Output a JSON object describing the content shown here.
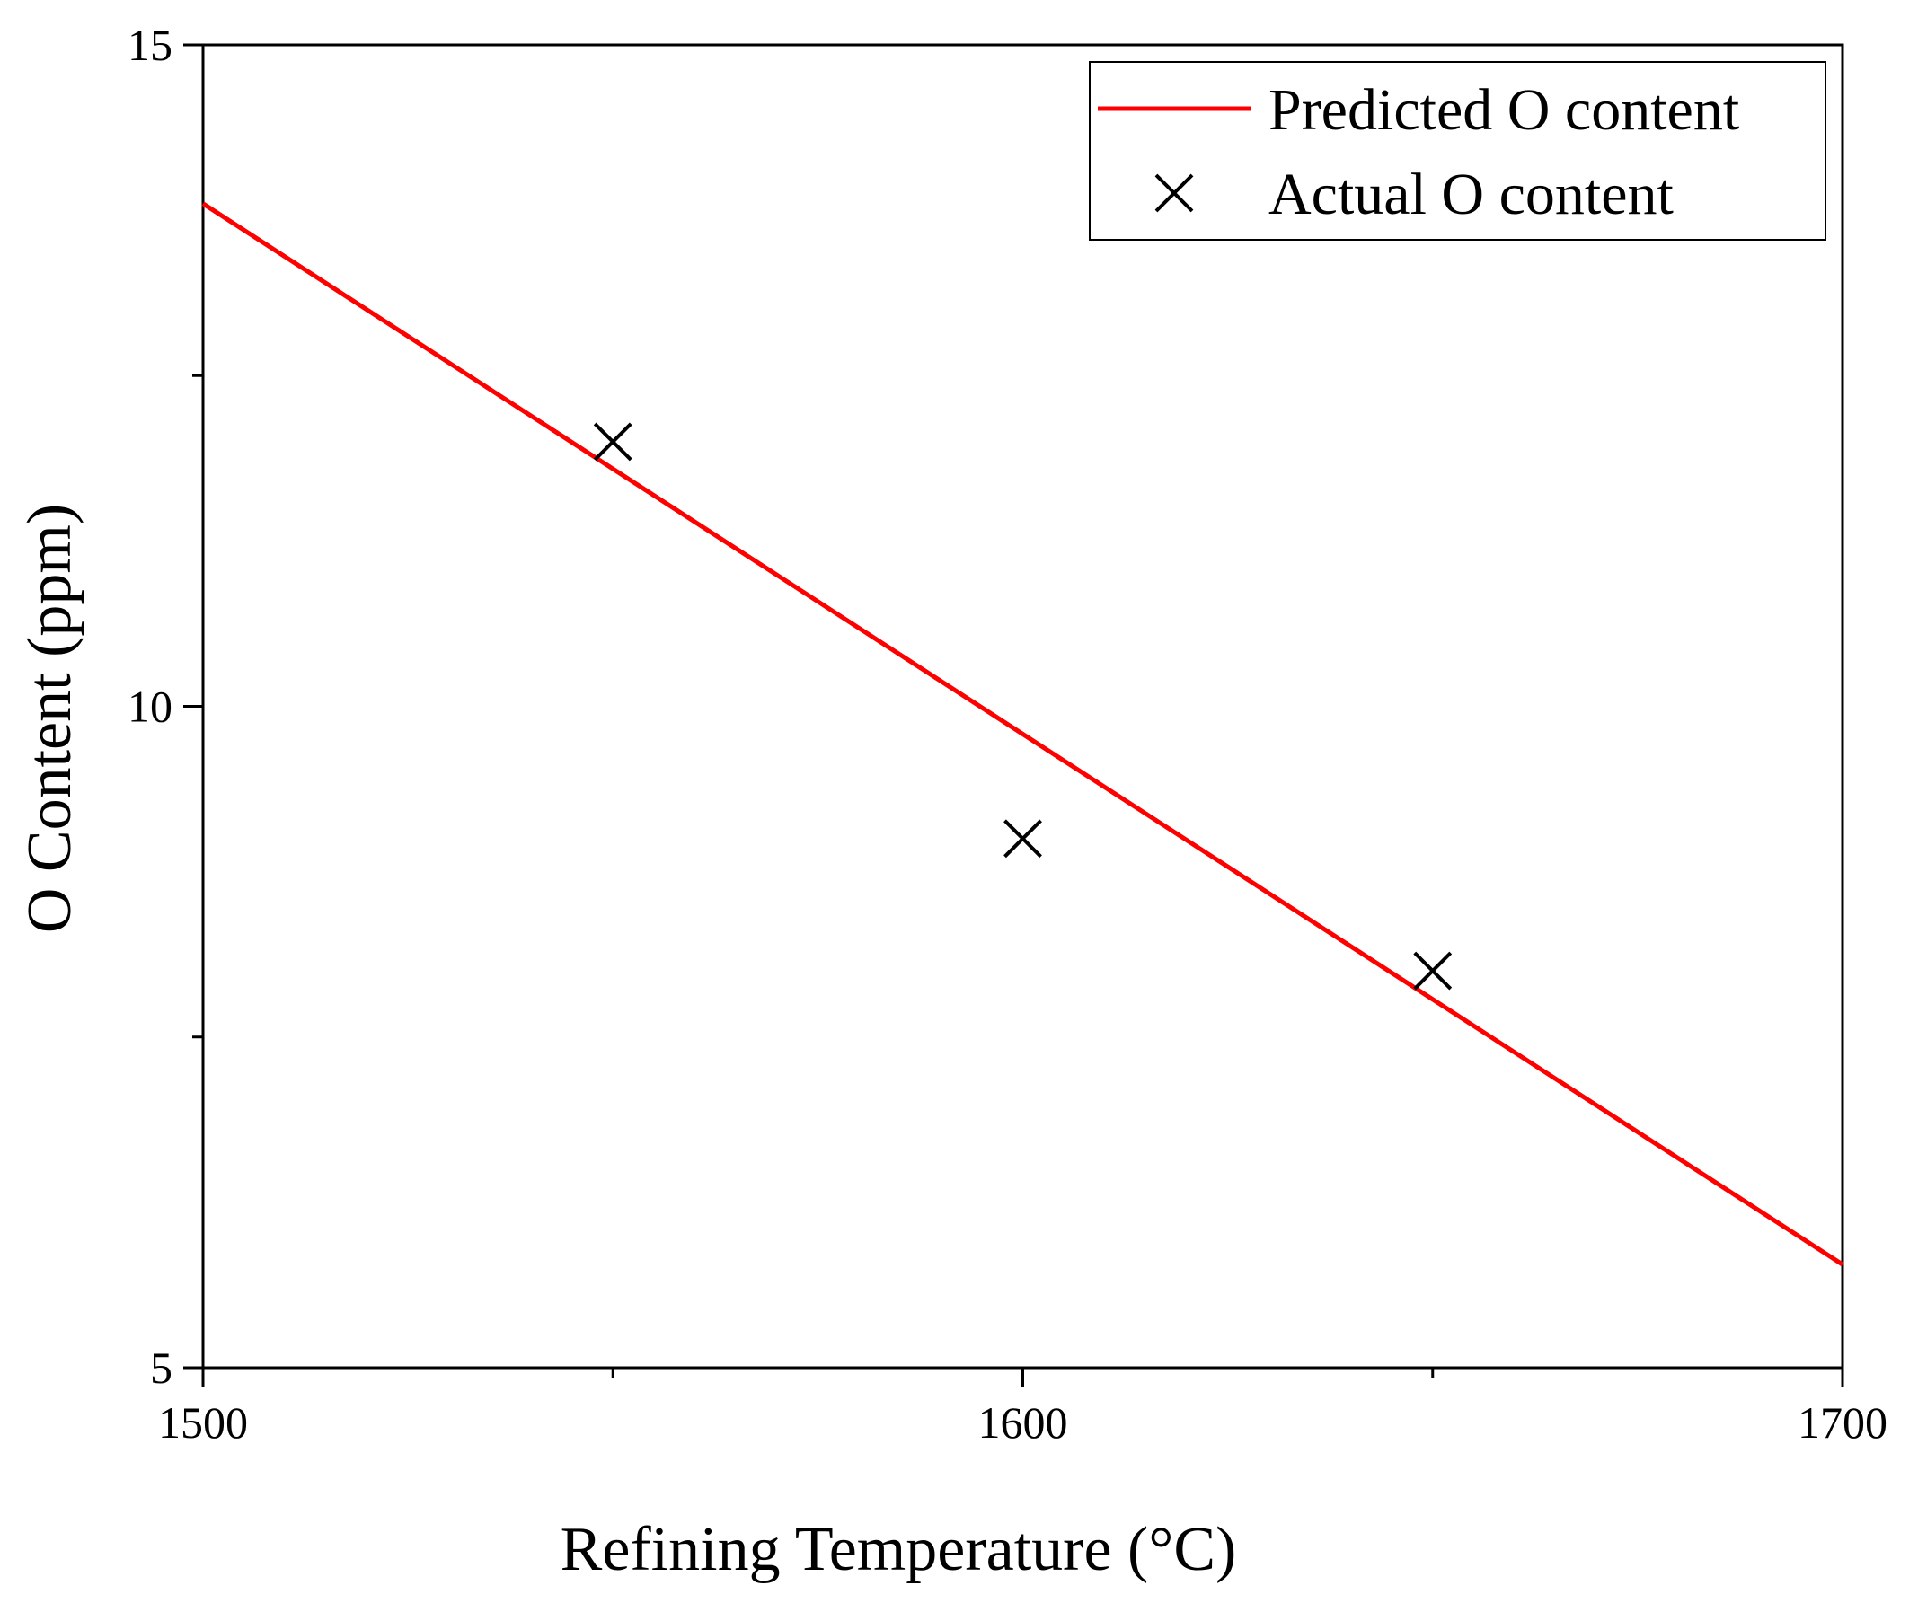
{
  "chart_data": {
    "type": "line",
    "title": "",
    "xlabel": "Refining Temperature (°C)",
    "ylabel": "O Content (ppm)",
    "xlim": [
      1500,
      1700
    ],
    "ylim": [
      5,
      15
    ],
    "x_major_ticks": [
      1500,
      1600,
      1700
    ],
    "x_minor_ticks": [
      1550,
      1650
    ],
    "y_major_ticks": [
      5,
      10,
      15
    ],
    "y_minor_ticks": [
      7.5,
      12.5
    ],
    "x_tick_labels": [
      "1500",
      "1600",
      "1700"
    ],
    "y_tick_labels": [
      "5",
      "10",
      "15"
    ],
    "grid": false,
    "legend_position": "top-right",
    "series": [
      {
        "name": "Predicted O content",
        "kind": "line",
        "color": "#ff0000",
        "x": [
          1500,
          1700
        ],
        "y": [
          13.8,
          5.78
        ]
      },
      {
        "name": "Actual O content",
        "kind": "scatter",
        "marker": "x",
        "color": "#000000",
        "x": [
          1550,
          1600,
          1650
        ],
        "y": [
          12.0,
          9.0,
          8.0
        ]
      }
    ]
  }
}
